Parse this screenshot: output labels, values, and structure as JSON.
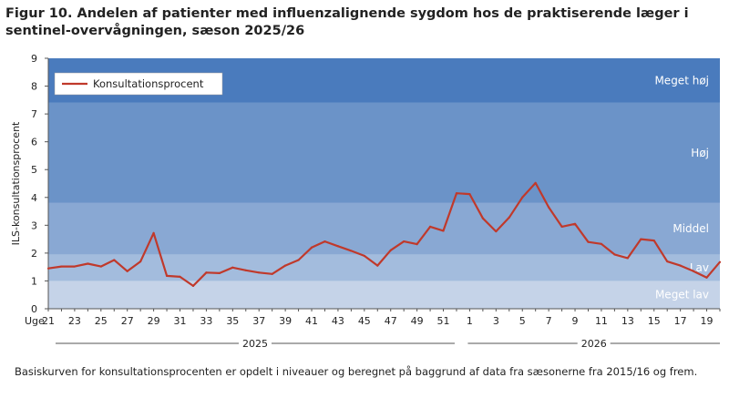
{
  "figure": {
    "title": "Figur 10. Andelen af patienter med influenzalignende sygdom hos de praktiserende læger i sentinel-overvågningen, sæson 2025/26",
    "footnote": "Basiskurven for konsultationsprocenten er opdelt i niveauer og beregnet på baggrund af data fra sæsonerne fra 2015/16 og frem."
  },
  "chart_data": {
    "type": "line",
    "title": "",
    "ylabel": "ILS-konsultationsprocent",
    "xlabel_prefix": "Uge",
    "ylim": [
      0,
      9
    ],
    "yticks": [
      0,
      1,
      2,
      3,
      4,
      5,
      6,
      7,
      8,
      9
    ],
    "x_tick_labels": [
      "21",
      "23",
      "25",
      "27",
      "29",
      "31",
      "33",
      "35",
      "37",
      "39",
      "41",
      "43",
      "45",
      "47",
      "49",
      "51",
      "1",
      "3",
      "5",
      "7",
      "9",
      "11",
      "13",
      "15",
      "17",
      "19"
    ],
    "year_groups": [
      {
        "label": "2025",
        "from_week": "21",
        "to_week": "52"
      },
      {
        "label": "2026",
        "from_week": "1",
        "to_week": "20"
      }
    ],
    "bands": [
      {
        "label": "Meget lav",
        "from": 0,
        "to": 1.0,
        "color": "#c5d3e8"
      },
      {
        "label": "Lav",
        "from": 1.0,
        "to": 1.95,
        "color": "#a3bcdd"
      },
      {
        "label": "Middel",
        "from": 1.95,
        "to": 3.8,
        "color": "#89a8d3"
      },
      {
        "label": "Høj",
        "from": 3.8,
        "to": 7.4,
        "color": "#6b93c8"
      },
      {
        "label": "Meget høj",
        "from": 7.4,
        "to": 9.0,
        "color": "#4a7bbd"
      }
    ],
    "series": [
      {
        "name": "Konsultationsprocent",
        "color": "#c0392b",
        "x": [
          "21",
          "22",
          "23",
          "24",
          "25",
          "26",
          "27",
          "28",
          "29",
          "30",
          "31",
          "32",
          "33",
          "34",
          "35",
          "36",
          "37",
          "38",
          "39",
          "40",
          "41",
          "42",
          "43",
          "44",
          "45",
          "46",
          "47",
          "48",
          "49",
          "50",
          "51",
          "52",
          "1",
          "2",
          "3",
          "4",
          "5",
          "6",
          "7",
          "8",
          "9",
          "10",
          "11",
          "12",
          "13",
          "14",
          "15",
          "16",
          "17",
          "18",
          "19",
          "20"
        ],
        "values": [
          1.45,
          1.52,
          1.52,
          1.62,
          1.52,
          1.75,
          1.35,
          1.7,
          2.72,
          1.18,
          1.15,
          0.82,
          1.3,
          1.28,
          1.48,
          1.38,
          1.3,
          1.25,
          1.55,
          1.75,
          2.2,
          2.42,
          2.25,
          2.08,
          1.9,
          1.55,
          2.1,
          2.42,
          2.32,
          2.95,
          2.8,
          4.15,
          4.12,
          3.25,
          2.78,
          3.28,
          4.0,
          4.52,
          3.65,
          2.95,
          3.05,
          2.4,
          2.33,
          1.95,
          1.82,
          2.5,
          2.45,
          1.7,
          1.55,
          1.35,
          1.12,
          1.68
        ]
      }
    ],
    "legend": {
      "placement": "top-left",
      "entries": [
        "Konsultationsprocent"
      ]
    },
    "grid": false
  }
}
